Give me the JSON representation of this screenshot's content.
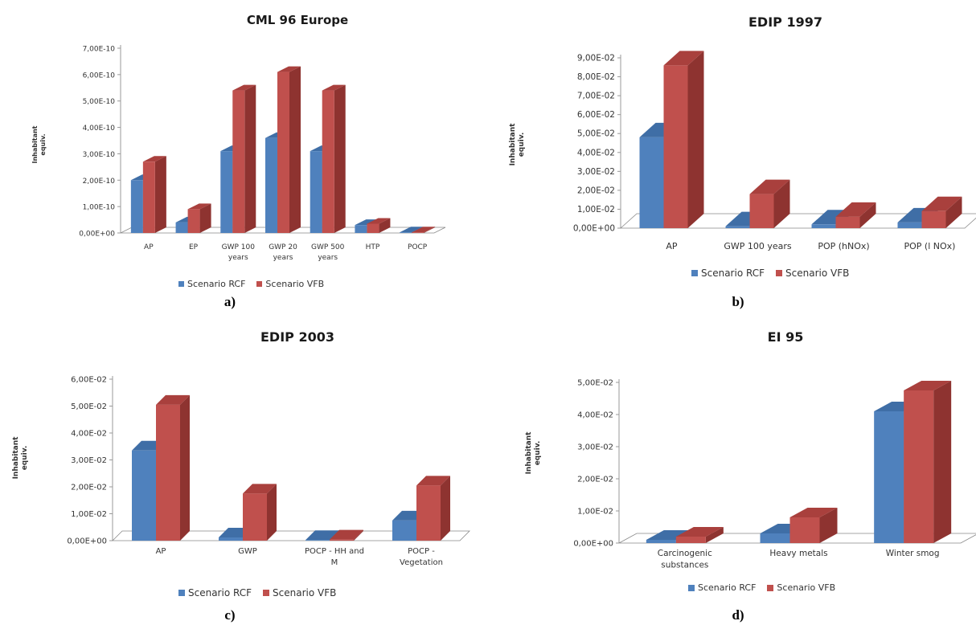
{
  "legend": [
    "Scenario RCF",
    "Scenario VFB"
  ],
  "colors": {
    "series": [
      "#4f81bd",
      "#c0504d"
    ],
    "series_side": [
      "#3a6394",
      "#8e3330"
    ],
    "series_top": [
      "#3f6ea6",
      "#a9403d"
    ],
    "floor": "#ffffff",
    "floor_stroke": "#888888",
    "axis": "#999999"
  },
  "chart_data": [
    {
      "type": "bar",
      "title": "CML 96 Europe",
      "panel_label": "a)",
      "ylabel": "Inhabitant equiv.",
      "ylim": [
        0,
        7e-10
      ],
      "yticks": [
        "0,00E+00",
        "1,00E-10",
        "2,00E-10",
        "3,00E-10",
        "4,00E-10",
        "5,00E-10",
        "6,00E-10",
        "7,00E-10"
      ],
      "categories": [
        [
          "AP"
        ],
        [
          "EP"
        ],
        [
          "GWP 100",
          "years"
        ],
        [
          "GWP 20",
          "years"
        ],
        [
          "GWP 500",
          "years"
        ],
        [
          "HTP"
        ],
        [
          "POCP"
        ]
      ],
      "series": [
        {
          "name": "Scenario RCF",
          "values": [
            2e-10,
            4e-11,
            3.1e-10,
            3.6e-10,
            3.1e-10,
            3e-11,
            1e-12
          ]
        },
        {
          "name": "Scenario VFB",
          "values": [
            2.7e-10,
            9e-11,
            5.4e-10,
            6.1e-10,
            5.4e-10,
            3.5e-11,
            2e-12
          ]
        }
      ]
    },
    {
      "type": "bar",
      "title": "EDIP 1997",
      "panel_label": "b)",
      "ylabel": "Inhabitant equiv.",
      "ylim": [
        0,
        0.09
      ],
      "yticks": [
        "0,00E+00",
        "1,00E-02",
        "2,00E-02",
        "3,00E-02",
        "4,00E-02",
        "5,00E-02",
        "6,00E-02",
        "7,00E-02",
        "8,00E-02",
        "9,00E-02"
      ],
      "categories": [
        [
          "AP"
        ],
        [
          "GWP 100 years"
        ],
        [
          "POP (hNOx)"
        ],
        [
          "POP (l NOx)"
        ]
      ],
      "series": [
        {
          "name": "Scenario RCF",
          "values": [
            0.048,
            0.001,
            0.002,
            0.003
          ]
        },
        {
          "name": "Scenario VFB",
          "values": [
            0.086,
            0.018,
            0.006,
            0.009
          ]
        }
      ]
    },
    {
      "type": "bar",
      "title": "EDIP 2003",
      "panel_label": "c)",
      "ylabel": "Inhabitant equiv.",
      "ylim": [
        0,
        0.06
      ],
      "yticks": [
        "0,00E+00",
        "1,00E-02",
        "2,00E-02",
        "3,00E-02",
        "4,00E-02",
        "5,00E-02",
        "6,00E-02"
      ],
      "categories": [
        [
          "AP"
        ],
        [
          "GWP"
        ],
        [
          "POCP - HH and",
          "M"
        ],
        [
          "POCP -",
          "Vegetation"
        ]
      ],
      "series": [
        {
          "name": "Scenario RCF",
          "values": [
            0.0335,
            0.0012,
            0.0002,
            0.0075
          ]
        },
        {
          "name": "Scenario VFB",
          "values": [
            0.0505,
            0.0175,
            0.0004,
            0.0205
          ]
        }
      ]
    },
    {
      "type": "bar",
      "title": "EI 95",
      "panel_label": "d)",
      "ylabel": "Inhabitant equiv.",
      "ylim": [
        0,
        0.05
      ],
      "yticks": [
        "0,00E+00",
        "1,00E-02",
        "2,00E-02",
        "3,00E-02",
        "4,00E-02",
        "5,00E-02"
      ],
      "categories": [
        [
          "Carcinogenic",
          "substances"
        ],
        [
          "Heavy metals"
        ],
        [
          "Winter smog"
        ]
      ],
      "series": [
        {
          "name": "Scenario RCF",
          "values": [
            0.001,
            0.003,
            0.041
          ]
        },
        {
          "name": "Scenario VFB",
          "values": [
            0.002,
            0.008,
            0.0475
          ]
        }
      ]
    }
  ]
}
